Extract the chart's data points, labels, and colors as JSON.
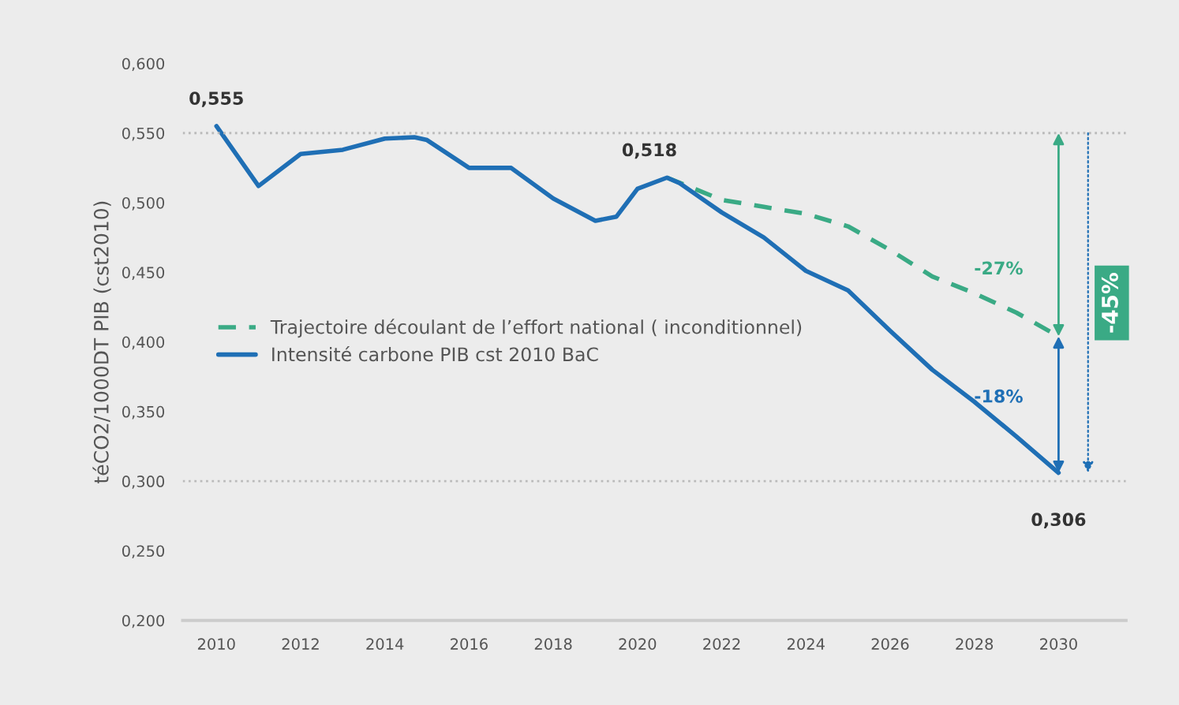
{
  "chart_data": {
    "type": "line",
    "ylabel": "téCO2/1000DT PIB (cst2010)",
    "series": [
      {
        "name": "Trajectoire découlant de l’effort national ( inconditionnel)",
        "color": "#3aaa85",
        "line_style": "dashed",
        "x": [
          2020.7,
          2022,
          2023,
          2024,
          2025,
          2026,
          2027,
          2028,
          2029,
          2030
        ],
        "values": [
          0.518,
          0.502,
          0.497,
          0.492,
          0.483,
          0.466,
          0.447,
          0.435,
          0.421,
          0.404
        ]
      },
      {
        "name": "Intensité carbone PIB cst 2010 BaC",
        "color": "#1f6fb5",
        "line_style": "solid",
        "x": [
          2010,
          2011,
          2012,
          2013,
          2014,
          2014.7,
          2015,
          2016,
          2017,
          2018,
          2019,
          2019.5,
          2020,
          2020.7,
          2021,
          2022,
          2023,
          2024,
          2025,
          2026,
          2027,
          2028,
          2029,
          2030
        ],
        "values": [
          0.555,
          0.512,
          0.535,
          0.538,
          0.546,
          0.547,
          0.545,
          0.525,
          0.525,
          0.503,
          0.487,
          0.49,
          0.51,
          0.518,
          0.514,
          0.493,
          0.475,
          0.451,
          0.437,
          0.408,
          0.38,
          0.357,
          0.332,
          0.306
        ]
      }
    ],
    "xlim": [
      2009.2,
      2031.6
    ],
    "ylim": [
      0.2,
      0.6
    ],
    "xticks": [
      2010,
      2012,
      2014,
      2016,
      2018,
      2020,
      2022,
      2024,
      2026,
      2028,
      2030
    ],
    "yticks": [
      {
        "value": 0.2,
        "label": "0,200"
      },
      {
        "value": 0.25,
        "label": "0,250"
      },
      {
        "value": 0.3,
        "label": "0,300"
      },
      {
        "value": 0.35,
        "label": "0,350"
      },
      {
        "value": 0.4,
        "label": "0,400"
      },
      {
        "value": 0.45,
        "label": "0,450"
      },
      {
        "value": 0.5,
        "label": "0,500"
      },
      {
        "value": 0.55,
        "label": "0,550"
      },
      {
        "value": 0.6,
        "label": "0,600"
      }
    ],
    "ref_lines": [
      {
        "axis": "y",
        "value": 0.55,
        "color": "#bbbbbb",
        "line_style": "dotted"
      },
      {
        "axis": "y",
        "value": 0.3,
        "color": "#bbbbbb",
        "line_style": "dotted"
      }
    ],
    "annotations": [
      {
        "text": "0,555",
        "x": 2010,
        "y": 0.555
      },
      {
        "text": "0,518",
        "x": 2020.7,
        "y": 0.518
      },
      {
        "text": "0,306",
        "x": 2030,
        "y": 0.306
      },
      "-27%",
      "-18%",
      "-45%"
    ],
    "grid": false,
    "legend": "left"
  }
}
